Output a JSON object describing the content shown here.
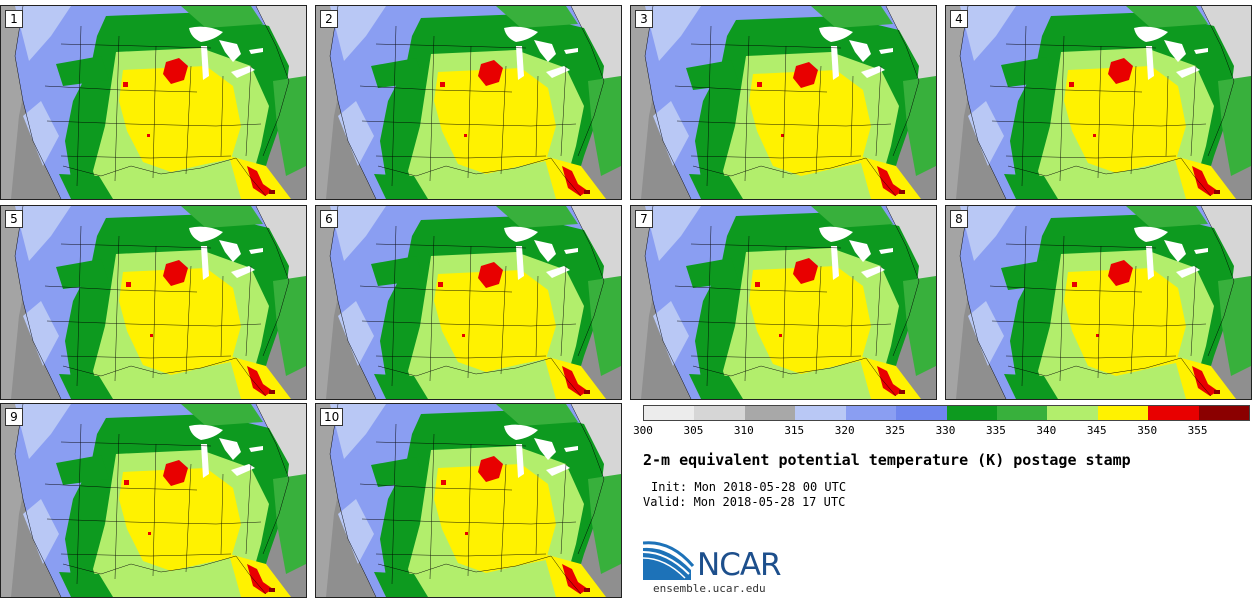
{
  "figure": {
    "title": "2-m equivalent potential temperature (K) postage stamp",
    "init": "Init: Mon 2018-05-28 00 UTC",
    "valid": "Valid: Mon 2018-05-28 17 UTC",
    "logo_text": "NCAR",
    "url": "ensemble.ucar.edu"
  },
  "members": [
    "1",
    "2",
    "3",
    "4",
    "5",
    "6",
    "7",
    "8",
    "9",
    "10"
  ],
  "colorbar": {
    "ticks": [
      "300",
      "305",
      "310",
      "315",
      "320",
      "325",
      "330",
      "335",
      "340",
      "345",
      "350",
      "355"
    ],
    "colors": [
      "#ececec",
      "#d6d6d6",
      "#a8a8a8",
      "#b9c8f5",
      "#8a9ef2",
      "#6f86ee",
      "#0d9a1f",
      "#38b03c",
      "#b2ee6c",
      "#fff200",
      "#e80000",
      "#8b0000"
    ]
  },
  "palette": {
    "ocean": "#8f8f8f",
    "ocean_west": "#a4a4a4",
    "water": "#ffffff",
    "line": "#000000"
  }
}
